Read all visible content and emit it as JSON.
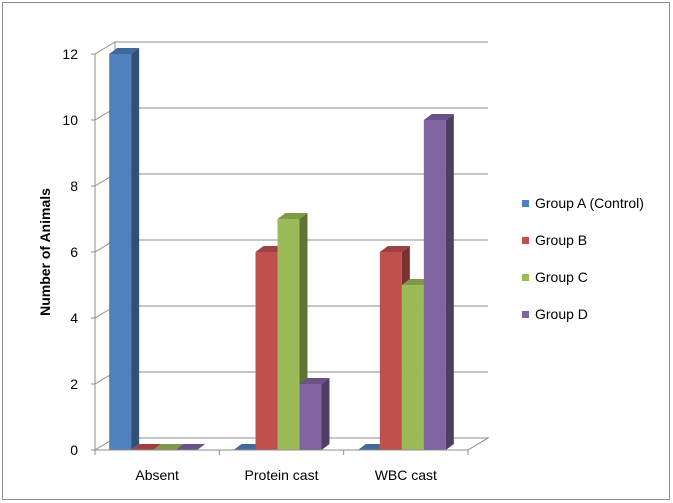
{
  "chart_data": {
    "type": "bar",
    "style": "3d-clustered-column",
    "title": "",
    "xlabel": "",
    "ylabel": "Number of Animals",
    "ylim": [
      0,
      12
    ],
    "yticks": [
      0,
      2,
      4,
      6,
      8,
      10,
      12
    ],
    "categories": [
      "Absent",
      "Protein cast",
      "WBC cast"
    ],
    "series": [
      {
        "name": "Group A (Control)",
        "color": "#4F81BD",
        "values": [
          12,
          0,
          0
        ]
      },
      {
        "name": "Group B",
        "color": "#C0504D",
        "values": [
          0,
          6,
          6
        ]
      },
      {
        "name": "Group C",
        "color": "#9BBB59",
        "values": [
          0,
          7,
          5
        ]
      },
      {
        "name": "Group D",
        "color": "#8064A2",
        "values": [
          0,
          2,
          10
        ]
      }
    ],
    "grid": true,
    "legend_position": "right"
  }
}
